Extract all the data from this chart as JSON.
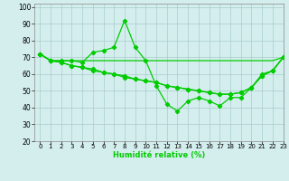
{
  "xlabel": "Humidité relative (%)",
  "bg_color": "#d4eeee",
  "grid_color": "#aacccc",
  "line_color": "#00cc00",
  "xlim": [
    -0.5,
    23
  ],
  "ylim": [
    20,
    102
  ],
  "xticks": [
    0,
    1,
    2,
    3,
    4,
    5,
    6,
    7,
    8,
    9,
    10,
    11,
    12,
    13,
    14,
    15,
    16,
    17,
    18,
    19,
    20,
    21,
    22,
    23
  ],
  "yticks": [
    20,
    30,
    40,
    50,
    60,
    70,
    80,
    90,
    100
  ],
  "series1": [
    72,
    68,
    68,
    68,
    67,
    73,
    74,
    76,
    92,
    76,
    68,
    53,
    42,
    38,
    44,
    46,
    44,
    41,
    46,
    46,
    52,
    60,
    62,
    70
  ],
  "series2": [
    72,
    68,
    68,
    68,
    68,
    68,
    68,
    68,
    68,
    68,
    68,
    68,
    68,
    68,
    68,
    68,
    68,
    68,
    68,
    68,
    68,
    68,
    68,
    70
  ],
  "series3": [
    72,
    68,
    67,
    65,
    64,
    63,
    61,
    60,
    59,
    57,
    56,
    55,
    53,
    52,
    51,
    50,
    49,
    48,
    48,
    49,
    52,
    59,
    62,
    70
  ],
  "series4": [
    72,
    68,
    67,
    65,
    64,
    62,
    61,
    60,
    58,
    57,
    56,
    55,
    53,
    52,
    51,
    50,
    49,
    48,
    48,
    49,
    52,
    59,
    62,
    70
  ]
}
